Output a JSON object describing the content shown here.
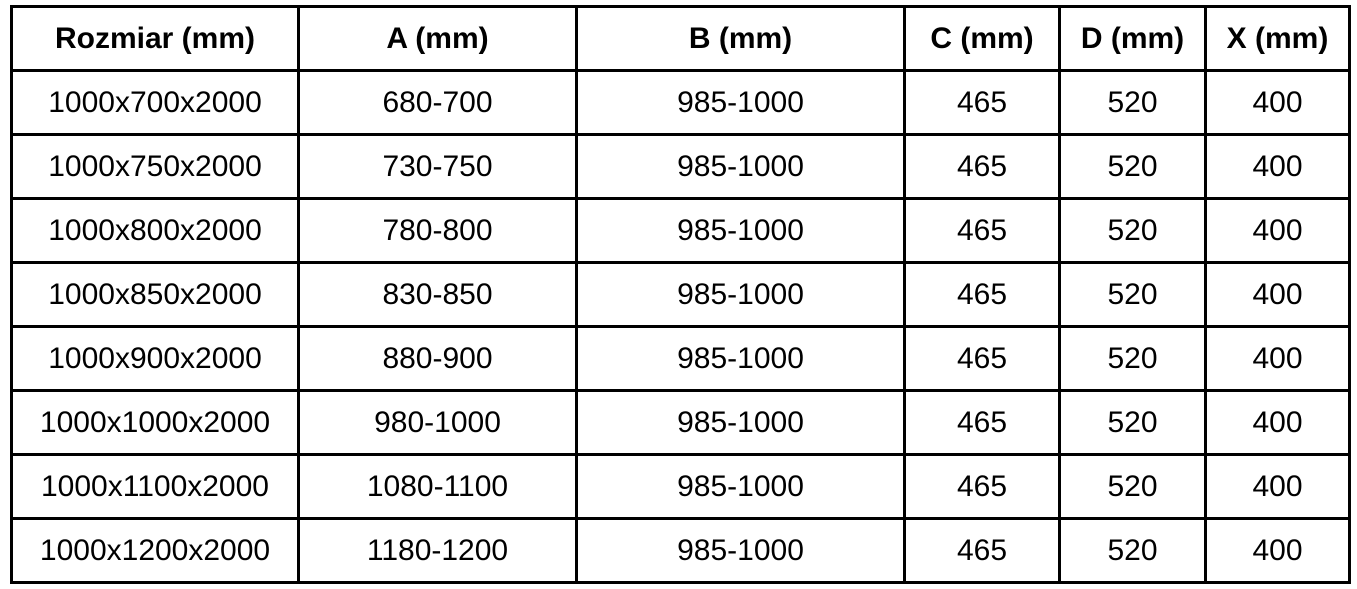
{
  "table": {
    "headers": [
      "Rozmiar (mm)",
      "A (mm)",
      "B (mm)",
      "C (mm)",
      "D (mm)",
      "X (mm)"
    ],
    "rows": [
      [
        "1000x700x2000",
        "680-700",
        "985-1000",
        "465",
        "520",
        "400"
      ],
      [
        "1000x750x2000",
        "730-750",
        "985-1000",
        "465",
        "520",
        "400"
      ],
      [
        "1000x800x2000",
        "780-800",
        "985-1000",
        "465",
        "520",
        "400"
      ],
      [
        "1000x850x2000",
        "830-850",
        "985-1000",
        "465",
        "520",
        "400"
      ],
      [
        "1000x900x2000",
        "880-900",
        "985-1000",
        "465",
        "520",
        "400"
      ],
      [
        "1000x1000x2000",
        "980-1000",
        "985-1000",
        "465",
        "520",
        "400"
      ],
      [
        "1000x1100x2000",
        "1080-1100",
        "985-1000",
        "465",
        "520",
        "400"
      ],
      [
        "1000x1200x2000",
        "1180-1200",
        "985-1000",
        "465",
        "520",
        "400"
      ]
    ]
  },
  "colors": {
    "border": "#000000",
    "text": "#000000",
    "background": "#ffffff"
  }
}
